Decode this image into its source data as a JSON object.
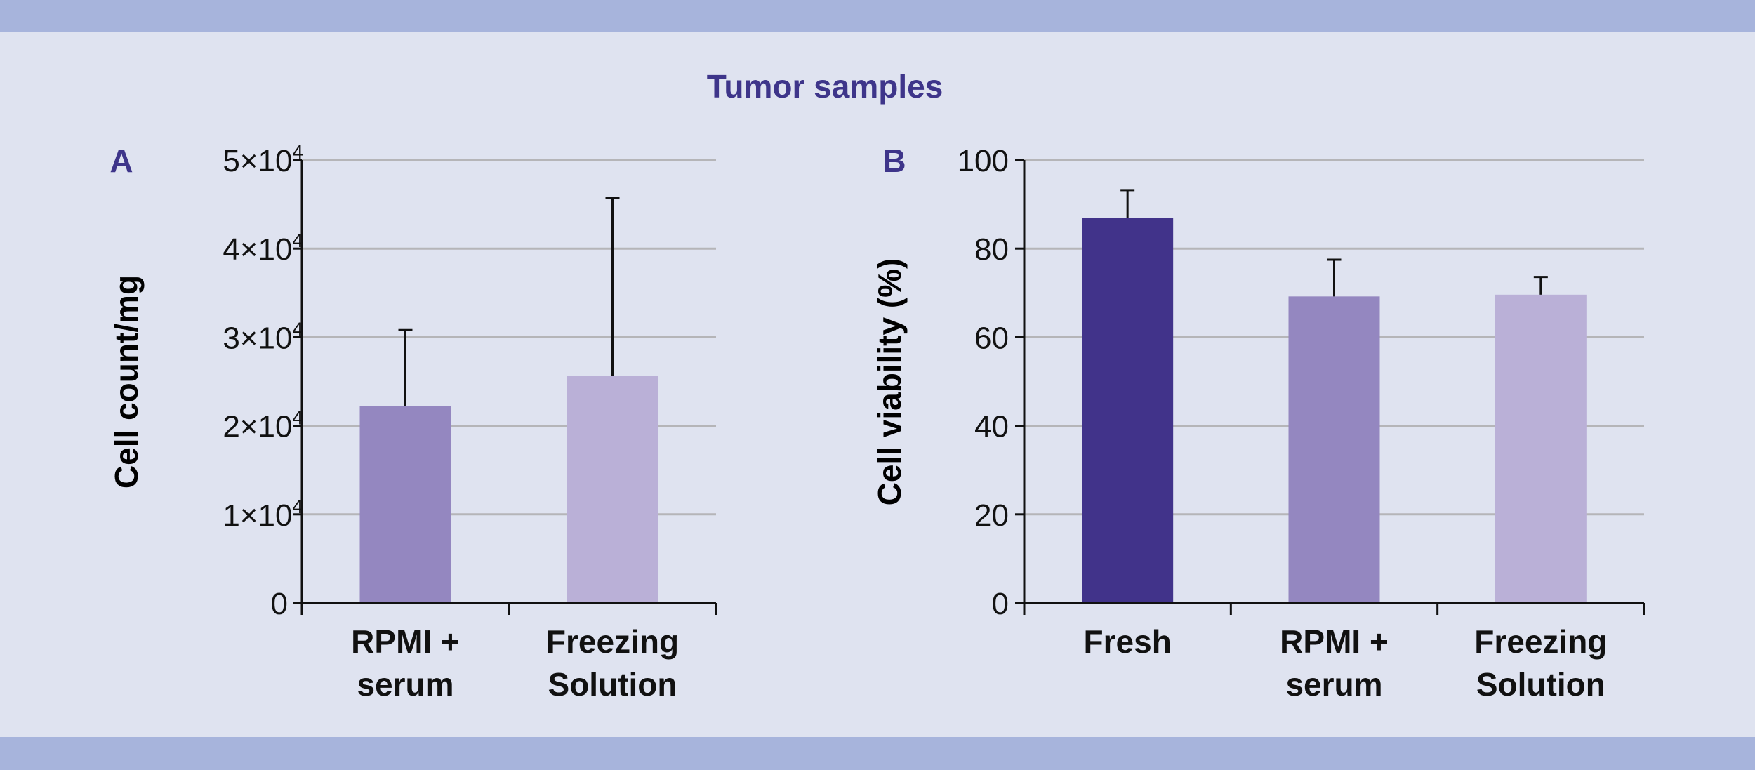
{
  "figure_title": "Tumor samples",
  "colors": {
    "title": "#3e358a",
    "grid": "#b5b5b8",
    "axis": "#111111",
    "fresh": "#41338a",
    "rpmi": "#9487c0",
    "freezing": "#bab0d7"
  },
  "chart_data": [
    {
      "type": "bar",
      "panel_label": "A",
      "ylabel": "Cell count/mg",
      "ylim": [
        0,
        50000
      ],
      "yticks": [
        {
          "value": 0,
          "mantissa": "0",
          "exp": ""
        },
        {
          "value": 10000,
          "mantissa": "1×10",
          "exp": "4"
        },
        {
          "value": 20000,
          "mantissa": "2×10",
          "exp": "4"
        },
        {
          "value": 30000,
          "mantissa": "3×10",
          "exp": "4"
        },
        {
          "value": 40000,
          "mantissa": "4×10",
          "exp": "4"
        },
        {
          "value": 50000,
          "mantissa": "5×10",
          "exp": "4"
        }
      ],
      "categories": [
        {
          "line1": "RPMI +",
          "line2": "serum"
        },
        {
          "line1": "Freezing",
          "line2": "Solution"
        }
      ],
      "values": [
        22200,
        25600
      ],
      "errors": [
        8600,
        20100
      ],
      "bar_colors": [
        "rpmi",
        "freezing"
      ],
      "grid": true
    },
    {
      "type": "bar",
      "panel_label": "B",
      "ylabel": "Cell viability (%)",
      "ylim": [
        0,
        100
      ],
      "yticks": [
        {
          "value": 0,
          "mantissa": "0",
          "exp": ""
        },
        {
          "value": 20,
          "mantissa": "20",
          "exp": ""
        },
        {
          "value": 40,
          "mantissa": "40",
          "exp": ""
        },
        {
          "value": 60,
          "mantissa": "60",
          "exp": ""
        },
        {
          "value": 80,
          "mantissa": "80",
          "exp": ""
        },
        {
          "value": 100,
          "mantissa": "100",
          "exp": ""
        }
      ],
      "categories": [
        {
          "line1": "Fresh",
          "line2": ""
        },
        {
          "line1": "RPMI +",
          "line2": "serum"
        },
        {
          "line1": "Freezing",
          "line2": "Solution"
        }
      ],
      "values": [
        87,
        69.2,
        69.6
      ],
      "errors": [
        6.2,
        8.3,
        4.0
      ],
      "bar_colors": [
        "fresh",
        "rpmi",
        "freezing"
      ],
      "grid": true
    }
  ]
}
